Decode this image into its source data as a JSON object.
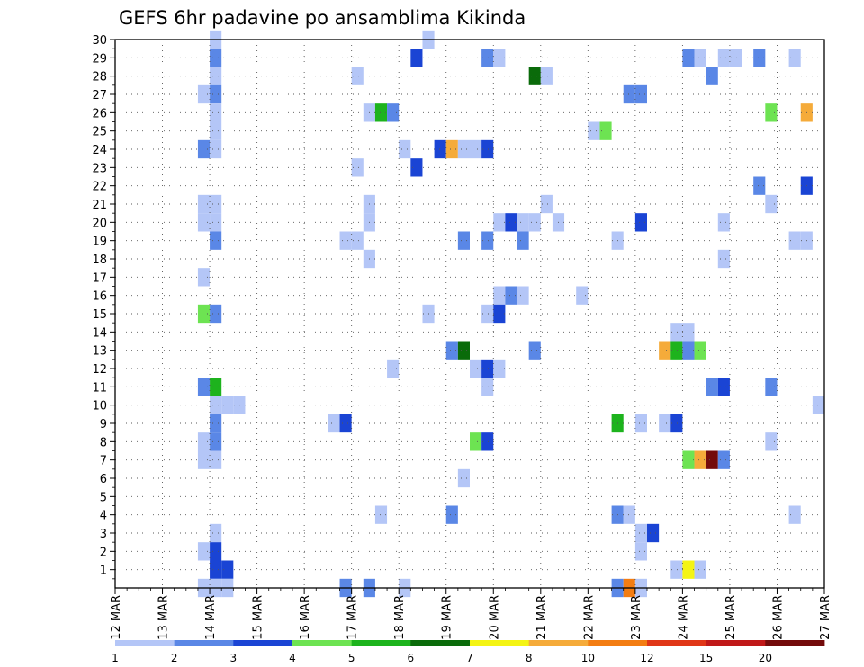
{
  "chart_data": {
    "type": "heatmap",
    "title": "GEFS 6hr padavine po ansamblima Kikinda",
    "xlabel": "",
    "ylabel": "",
    "x_tick_labels": [
      "12 MAR",
      "13 MAR",
      "14 MAR",
      "15 MAR",
      "16 MAR",
      "17 MAR",
      "18 MAR",
      "19 MAR",
      "20 MAR",
      "21 MAR",
      "22 MAR",
      "23 MAR",
      "24 MAR",
      "25 MAR",
      "26 MAR",
      "27 MAR"
    ],
    "y_tick_labels": [
      "1",
      "2",
      "3",
      "4",
      "5",
      "6",
      "7",
      "8",
      "9",
      "10",
      "11",
      "12",
      "13",
      "14",
      "15",
      "16",
      "17",
      "18",
      "19",
      "20",
      "21",
      "22",
      "23",
      "24",
      "25",
      "26",
      "27",
      "28",
      "29",
      "30"
    ],
    "x_range_days": [
      0,
      15
    ],
    "y_range_members": [
      0,
      30
    ],
    "x_step_days": 0.25,
    "grid": true,
    "grid_style": "dotted",
    "colorbar": {
      "placement": "bottom",
      "tick_labels": [
        "1",
        "2",
        "3",
        "4",
        "5",
        "6",
        "7",
        "8",
        "10",
        "12",
        "15",
        "20"
      ],
      "colors": [
        "#b4c6f7",
        "#5a87e6",
        "#1a44d4",
        "#6de352",
        "#1db31d",
        "#0a6b0a",
        "#f4f414",
        "#f5ab3a",
        "#f37d12",
        "#e03617",
        "#c01818",
        "#730b0b"
      ]
    },
    "cells": [
      [
        2.0,
        30,
        0
      ],
      [
        2.0,
        29,
        1
      ],
      [
        2.0,
        28,
        0
      ],
      [
        2.0,
        27,
        1
      ],
      [
        2.0,
        26,
        0
      ],
      [
        2.0,
        25,
        0
      ],
      [
        2.0,
        24,
        0
      ],
      [
        2.0,
        21,
        0
      ],
      [
        2.0,
        20,
        0
      ],
      [
        2.0,
        19,
        1
      ],
      [
        2.0,
        15,
        1
      ],
      [
        2.0,
        11,
        4
      ],
      [
        2.0,
        10,
        0
      ],
      [
        2.0,
        9,
        1
      ],
      [
        2.0,
        8,
        1
      ],
      [
        2.0,
        7,
        0
      ],
      [
        2.0,
        3,
        0
      ],
      [
        2.0,
        2,
        2
      ],
      [
        2.0,
        1,
        2
      ],
      [
        2.0,
        0,
        0
      ],
      [
        1.75,
        27,
        0
      ],
      [
        1.75,
        24,
        1
      ],
      [
        1.75,
        21,
        0
      ],
      [
        1.75,
        20,
        0
      ],
      [
        1.75,
        17,
        0
      ],
      [
        1.75,
        15,
        3
      ],
      [
        1.75,
        11,
        1
      ],
      [
        1.75,
        8,
        0
      ],
      [
        1.75,
        7,
        0
      ],
      [
        1.75,
        2,
        0
      ],
      [
        1.75,
        0,
        0
      ],
      [
        2.25,
        1,
        2
      ],
      [
        2.25,
        10,
        0
      ],
      [
        2.25,
        0,
        0
      ],
      [
        2.5,
        10,
        0
      ],
      [
        4.5,
        9,
        0
      ],
      [
        4.75,
        9,
        2
      ],
      [
        4.75,
        19,
        0
      ],
      [
        4.75,
        0,
        1
      ],
      [
        5.0,
        28,
        0
      ],
      [
        5.0,
        23,
        0
      ],
      [
        5.0,
        19,
        0
      ],
      [
        5.25,
        26,
        0
      ],
      [
        5.25,
        21,
        0
      ],
      [
        5.25,
        20,
        0
      ],
      [
        5.25,
        18,
        0
      ],
      [
        5.25,
        0,
        1
      ],
      [
        5.5,
        26,
        4
      ],
      [
        5.5,
        4,
        0
      ],
      [
        5.75,
        26,
        1
      ],
      [
        5.75,
        12,
        0
      ],
      [
        6.0,
        24,
        0
      ],
      [
        6.0,
        0,
        0
      ],
      [
        6.25,
        29,
        2
      ],
      [
        6.25,
        23,
        2
      ],
      [
        6.5,
        30,
        0
      ],
      [
        6.5,
        15,
        0
      ],
      [
        6.75,
        24,
        2
      ],
      [
        7.0,
        24,
        7
      ],
      [
        7.0,
        13,
        1
      ],
      [
        7.0,
        4,
        1
      ],
      [
        7.25,
        24,
        0
      ],
      [
        7.25,
        19,
        1
      ],
      [
        7.25,
        13,
        5
      ],
      [
        7.25,
        6,
        0
      ],
      [
        7.5,
        24,
        0
      ],
      [
        7.5,
        12,
        0
      ],
      [
        7.5,
        8,
        3
      ],
      [
        7.75,
        29,
        1
      ],
      [
        7.75,
        24,
        2
      ],
      [
        7.75,
        19,
        1
      ],
      [
        7.75,
        15,
        0
      ],
      [
        7.75,
        12,
        2
      ],
      [
        7.75,
        11,
        0
      ],
      [
        7.75,
        8,
        2
      ],
      [
        8.0,
        29,
        0
      ],
      [
        8.0,
        20,
        0
      ],
      [
        8.0,
        16,
        0
      ],
      [
        8.0,
        15,
        2
      ],
      [
        8.0,
        12,
        0
      ],
      [
        8.25,
        20,
        2
      ],
      [
        8.25,
        16,
        1
      ],
      [
        8.5,
        20,
        0
      ],
      [
        8.5,
        16,
        0
      ],
      [
        8.5,
        19,
        1
      ],
      [
        8.75,
        20,
        0
      ],
      [
        8.75,
        28,
        5
      ],
      [
        8.75,
        13,
        1
      ],
      [
        9.0,
        28,
        0
      ],
      [
        9.0,
        21,
        0
      ],
      [
        9.25,
        20,
        0
      ],
      [
        9.75,
        16,
        0
      ],
      [
        10.0,
        25,
        0
      ],
      [
        10.25,
        25,
        3
      ],
      [
        10.5,
        19,
        0
      ],
      [
        10.5,
        9,
        4
      ],
      [
        10.5,
        4,
        1
      ],
      [
        10.5,
        0,
        1
      ],
      [
        10.75,
        27,
        1
      ],
      [
        10.75,
        4,
        0
      ],
      [
        10.75,
        0,
        8
      ],
      [
        11.0,
        27,
        1
      ],
      [
        11.0,
        20,
        2
      ],
      [
        11.0,
        9,
        0
      ],
      [
        11.0,
        3,
        0
      ],
      [
        11.0,
        2,
        0
      ],
      [
        11.0,
        0,
        0
      ],
      [
        11.25,
        3,
        2
      ],
      [
        11.5,
        13,
        7
      ],
      [
        11.5,
        9,
        0
      ],
      [
        11.75,
        14,
        0
      ],
      [
        11.75,
        13,
        4
      ],
      [
        11.75,
        9,
        2
      ],
      [
        11.75,
        1,
        0
      ],
      [
        12.0,
        14,
        0
      ],
      [
        12.0,
        13,
        1
      ],
      [
        12.0,
        7,
        3
      ],
      [
        12.0,
        1,
        6
      ],
      [
        12.25,
        13,
        3
      ],
      [
        12.25,
        7,
        7
      ],
      [
        12.25,
        1,
        0
      ],
      [
        12.0,
        29,
        1
      ],
      [
        12.25,
        29,
        0
      ],
      [
        12.5,
        28,
        1
      ],
      [
        12.5,
        11,
        1
      ],
      [
        12.5,
        7,
        11
      ],
      [
        12.75,
        29,
        0
      ],
      [
        12.75,
        20,
        0
      ],
      [
        12.75,
        18,
        0
      ],
      [
        12.75,
        11,
        2
      ],
      [
        12.75,
        7,
        1
      ],
      [
        13.0,
        29,
        0
      ],
      [
        13.5,
        29,
        1
      ],
      [
        13.5,
        22,
        1
      ],
      [
        13.75,
        26,
        3
      ],
      [
        13.75,
        21,
        0
      ],
      [
        13.75,
        11,
        1
      ],
      [
        13.75,
        8,
        0
      ],
      [
        14.25,
        29,
        0
      ],
      [
        14.25,
        19,
        0
      ],
      [
        14.25,
        4,
        0
      ],
      [
        14.5,
        26,
        7
      ],
      [
        14.5,
        22,
        2
      ],
      [
        14.5,
        19,
        0
      ],
      [
        14.75,
        10,
        0
      ]
    ]
  }
}
